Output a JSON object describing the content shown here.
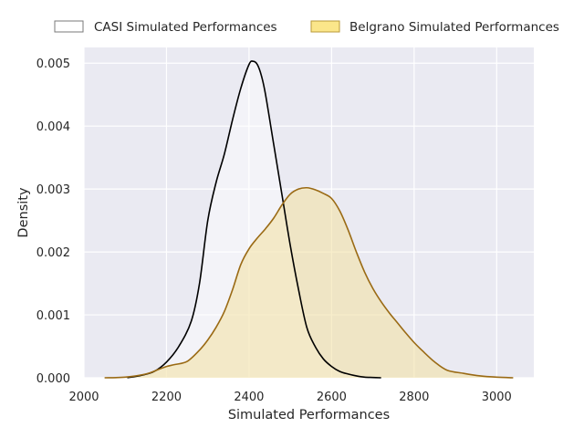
{
  "chart_data": {
    "type": "area",
    "title": "",
    "xlabel": "Simulated Performances",
    "ylabel": "Density",
    "xlim": [
      2000,
      3090
    ],
    "ylim": [
      0,
      0.00525
    ],
    "xticks": [
      2000,
      2200,
      2400,
      2600,
      2800,
      3000
    ],
    "xtick_labels": [
      "2000",
      "2200",
      "2400",
      "2600",
      "2800",
      "3000"
    ],
    "yticks": [
      0,
      0.001,
      0.002,
      0.003,
      0.004,
      0.005
    ],
    "ytick_labels": [
      "0.000",
      "0.001",
      "0.002",
      "0.003",
      "0.004",
      "0.005"
    ],
    "grid": true,
    "legend_position": "top",
    "series": [
      {
        "name": "CASI Simulated Performances",
        "line_color": "#000000",
        "fill_color": "#ffffff",
        "fill_opacity": 0.45,
        "x": [
          2105,
          2140,
          2170,
          2200,
          2230,
          2260,
          2280,
          2300,
          2320,
          2340,
          2360,
          2380,
          2400,
          2410,
          2420,
          2430,
          2440,
          2460,
          2480,
          2500,
          2520,
          2540,
          2560,
          2580,
          2600,
          2620,
          2640,
          2660,
          2680,
          2700,
          2720
        ],
        "y": [
          0.0,
          4e-05,
          0.0001,
          0.00025,
          0.0005,
          0.0009,
          0.0015,
          0.0025,
          0.0031,
          0.00355,
          0.0041,
          0.0046,
          0.00498,
          0.00503,
          0.00498,
          0.0048,
          0.0045,
          0.0037,
          0.0029,
          0.0021,
          0.0014,
          0.0008,
          0.0005,
          0.0003,
          0.00018,
          0.0001,
          6e-05,
          3e-05,
          1e-05,
          5e-06,
          0.0
        ]
      },
      {
        "name": "Belgrano Simulated Performances",
        "line_color": "#9a6a14",
        "fill_color": "#f2e0a0",
        "fill_opacity": 0.55,
        "x": [
          2050,
          2100,
          2150,
          2180,
          2200,
          2220,
          2250,
          2280,
          2300,
          2320,
          2340,
          2360,
          2380,
          2400,
          2420,
          2440,
          2460,
          2480,
          2500,
          2520,
          2540,
          2560,
          2580,
          2600,
          2620,
          2640,
          2660,
          2680,
          2700,
          2720,
          2740,
          2760,
          2780,
          2800,
          2820,
          2850,
          2880,
          2920,
          2960,
          3000,
          3040
        ],
        "y": [
          0.0,
          1e-05,
          6e-05,
          0.00013,
          0.00018,
          0.00021,
          0.00026,
          0.00044,
          0.0006,
          0.0008,
          0.00105,
          0.0014,
          0.0018,
          0.00205,
          0.00222,
          0.00237,
          0.00254,
          0.00275,
          0.00292,
          0.003,
          0.00302,
          0.00299,
          0.00293,
          0.00285,
          0.00265,
          0.00235,
          0.002,
          0.00168,
          0.00142,
          0.00121,
          0.00103,
          0.00087,
          0.00071,
          0.00056,
          0.00043,
          0.00025,
          0.00012,
          7e-05,
          3e-05,
          1e-05,
          0.0
        ]
      }
    ]
  }
}
